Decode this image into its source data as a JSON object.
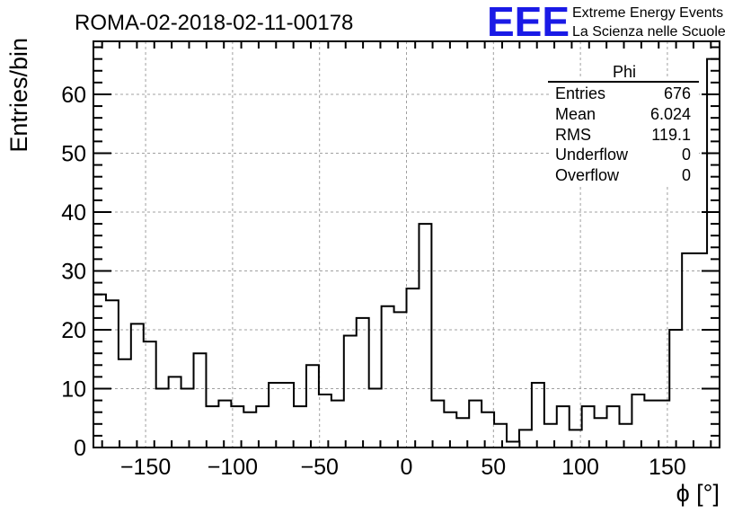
{
  "header": {
    "run_title": "ROMA-02-2018-02-11-00178",
    "logo_text": "EEE",
    "logo_line1": "Extreme Energy Events",
    "logo_line2": "La Scienza nelle Scuole",
    "logo_color": "#1a1ae6"
  },
  "stats_box": {
    "title": "Phi",
    "rows": [
      {
        "label": "Entries",
        "value": "676"
      },
      {
        "label": "Mean",
        "value": "6.024"
      },
      {
        "label": "RMS",
        "value": "119.1"
      },
      {
        "label": "Underflow",
        "value": "0"
      },
      {
        "label": "Overflow",
        "value": "0"
      }
    ]
  },
  "chart_data": {
    "type": "bar",
    "histogram": "step",
    "title": "ROMA-02-2018-02-11-00178",
    "xlabel": "ϕ [°]",
    "ylabel": "Entries/bin",
    "xlim": [
      -180,
      180
    ],
    "ylim": [
      0,
      69
    ],
    "bin_width": 7.2,
    "x_ticks": [
      -150,
      -100,
      -50,
      0,
      50,
      100,
      150
    ],
    "y_ticks": [
      0,
      10,
      20,
      30,
      40,
      50,
      60
    ],
    "grid": true,
    "legend": "none",
    "line_color": "#000000",
    "values": [
      26,
      25,
      15,
      21,
      18,
      10,
      12,
      10,
      16,
      7,
      8,
      7,
      6,
      7,
      11,
      11,
      7,
      14,
      9,
      8,
      19,
      22,
      10,
      24,
      23,
      27,
      38,
      8,
      6,
      5,
      8,
      6,
      4,
      1,
      3,
      11,
      4,
      7,
      3,
      7,
      5,
      7,
      4,
      9,
      8,
      8,
      20,
      33,
      33,
      66
    ]
  }
}
